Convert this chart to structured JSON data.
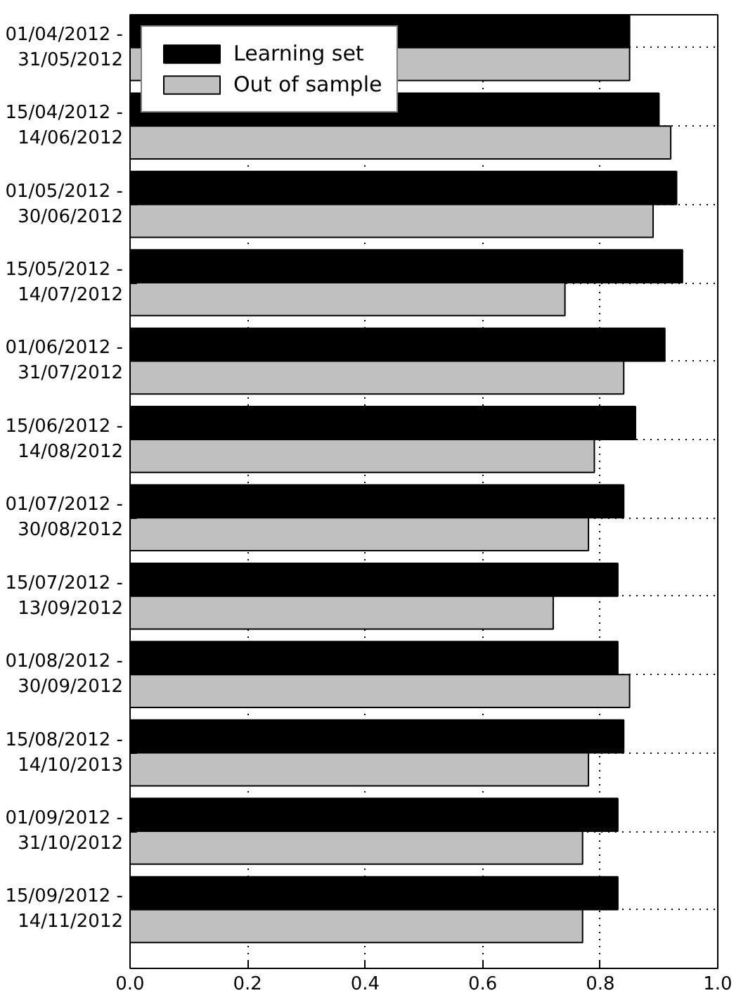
{
  "chart_data": {
    "type": "bar",
    "orientation": "horizontal",
    "categories": [
      "01/04/2012 -\n31/05/2012",
      "15/04/2012 -\n14/06/2012",
      "01/05/2012 -\n30/06/2012",
      "15/05/2012 -\n14/07/2012",
      "01/06/2012 -\n31/07/2012",
      "15/06/2012 -\n14/08/2012",
      "01/07/2012 -\n30/08/2012",
      "15/07/2012 -\n13/09/2012",
      "01/08/2012 -\n30/09/2012",
      "15/08/2012 -\n14/10/2013",
      "01/09/2012 -\n31/10/2012",
      "15/09/2012 -\n14/11/2012"
    ],
    "series": [
      {
        "name": "Learning set",
        "color": "#000000",
        "values": [
          0.85,
          0.9,
          0.93,
          0.94,
          0.91,
          0.86,
          0.84,
          0.83,
          0.83,
          0.84,
          0.83,
          0.83
        ]
      },
      {
        "name": "Out of sample",
        "color": "#c0c0c0",
        "values": [
          0.85,
          0.92,
          0.89,
          0.74,
          0.84,
          0.79,
          0.78,
          0.72,
          0.85,
          0.78,
          0.77,
          0.77
        ]
      }
    ],
    "xlim": [
      0.0,
      1.0
    ],
    "xticks": [
      {
        "value": 0.0,
        "label": "0.0"
      },
      {
        "value": 0.2,
        "label": "0.2"
      },
      {
        "value": 0.4,
        "label": "0.4"
      },
      {
        "value": 0.6,
        "label": "0.6"
      },
      {
        "value": 0.8,
        "label": "0.8"
      },
      {
        "value": 1.0,
        "label": "1.0"
      }
    ],
    "grid": true,
    "legend": "top left"
  }
}
